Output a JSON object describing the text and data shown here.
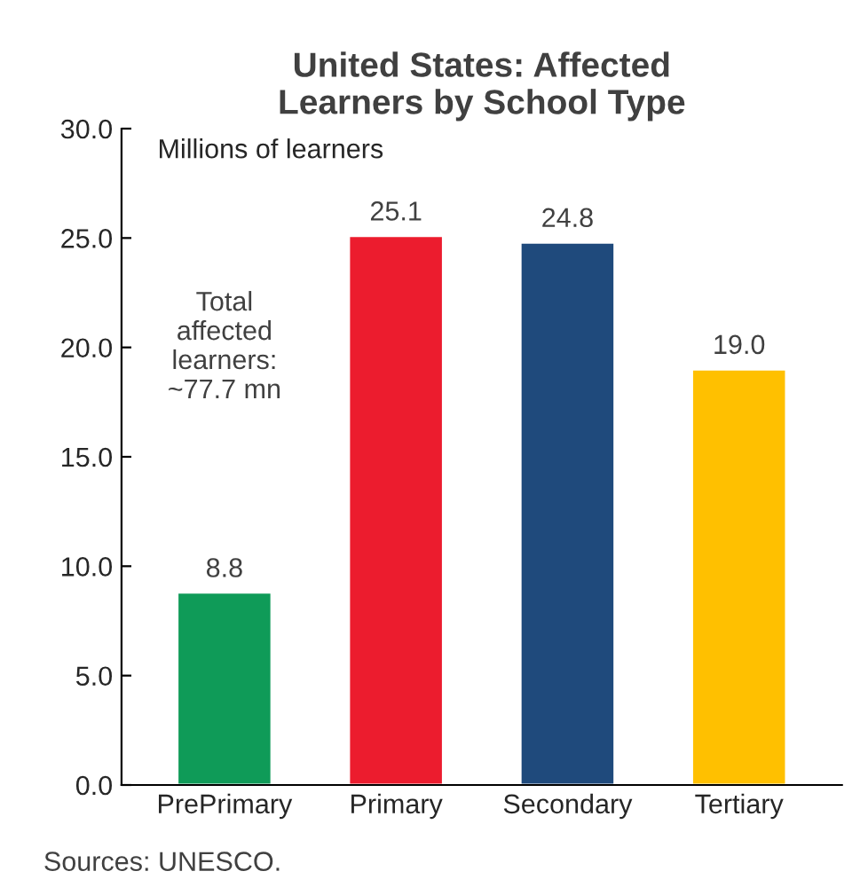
{
  "chart_data": {
    "type": "bar",
    "title": "United States: Affected\nLearners by School Type",
    "categories": [
      "PrePrimary",
      "Primary",
      "Secondary",
      "Tertiary"
    ],
    "values": [
      8.8,
      25.1,
      24.8,
      19.0
    ],
    "colors": [
      "#0f9b58",
      "#ec1c2e",
      "#1f4a7c",
      "#ffc000"
    ],
    "value_labels": [
      "8.8",
      "25.1",
      "24.8",
      "19.0"
    ],
    "ylim": [
      0,
      30
    ],
    "yticks": [
      {
        "value": 0,
        "label": "0.0"
      },
      {
        "value": 5,
        "label": "5.0"
      },
      {
        "value": 10,
        "label": "10.0"
      },
      {
        "value": 15,
        "label": "15.0"
      },
      {
        "value": 20,
        "label": "20.0"
      },
      {
        "value": 25,
        "label": "25.0"
      },
      {
        "value": 30,
        "label": "30.0"
      }
    ],
    "ylabel": "Millions of learners",
    "annotations": [
      "Total\naffected\nlearners:\n~77.7 mn",
      "Sources: UNESCO."
    ],
    "grid": false,
    "legend": false
  }
}
